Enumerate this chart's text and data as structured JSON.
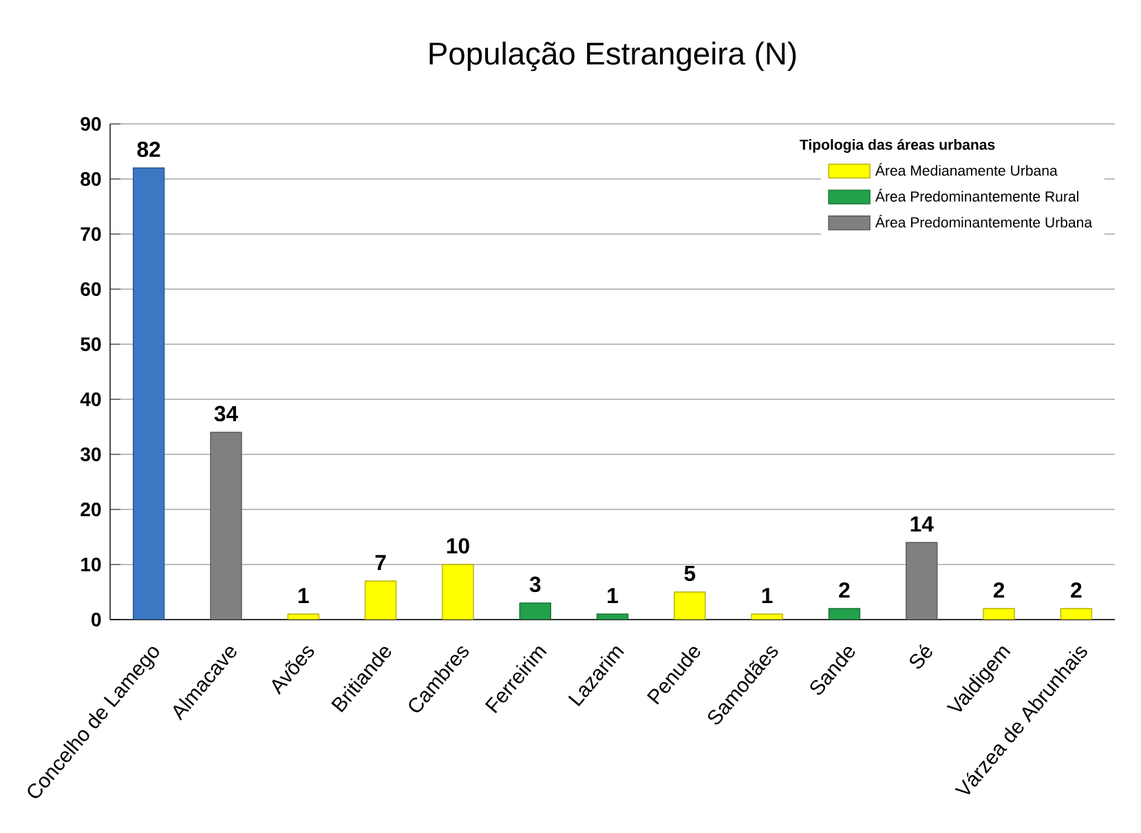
{
  "chart_data": {
    "type": "bar",
    "title": "População Estrangeira (N)",
    "categories": [
      "Concelho de Lamego",
      "Almacave",
      "Avões",
      "Britiande",
      "Cambres",
      "Ferreirim",
      "Lazarim",
      "Penude",
      "Samodães",
      "Sande",
      "Sé",
      "Valdigem",
      "Várzea de Abrunhais"
    ],
    "series": [
      {
        "color": "#3a78c4",
        "values": [
          82,
          null,
          null,
          null,
          null,
          null,
          null,
          null,
          null,
          null,
          null,
          null,
          null
        ]
      },
      {
        "name": "Área Medianamente Urbana",
        "color": "#ffff00",
        "values": [
          null,
          null,
          1,
          7,
          10,
          null,
          null,
          5,
          1,
          null,
          null,
          2,
          2
        ]
      },
      {
        "name": "Área Predominantemente Rural",
        "color": "#22a04a",
        "values": [
          null,
          null,
          null,
          null,
          null,
          3,
          1,
          null,
          null,
          2,
          null,
          null,
          null
        ]
      },
      {
        "name": "Área Predominantemente Urbana",
        "color": "#808080",
        "values": [
          null,
          34,
          null,
          null,
          null,
          null,
          null,
          null,
          null,
          null,
          14,
          null,
          null
        ]
      }
    ],
    "legend_title": "Tipologia das áreas urbanas",
    "legend": "top right",
    "data_labels": true,
    "grid": "y",
    "ylim": [
      0,
      90
    ],
    "yticks": [
      0,
      10,
      20,
      30,
      40,
      50,
      60,
      70,
      80,
      90
    ]
  }
}
